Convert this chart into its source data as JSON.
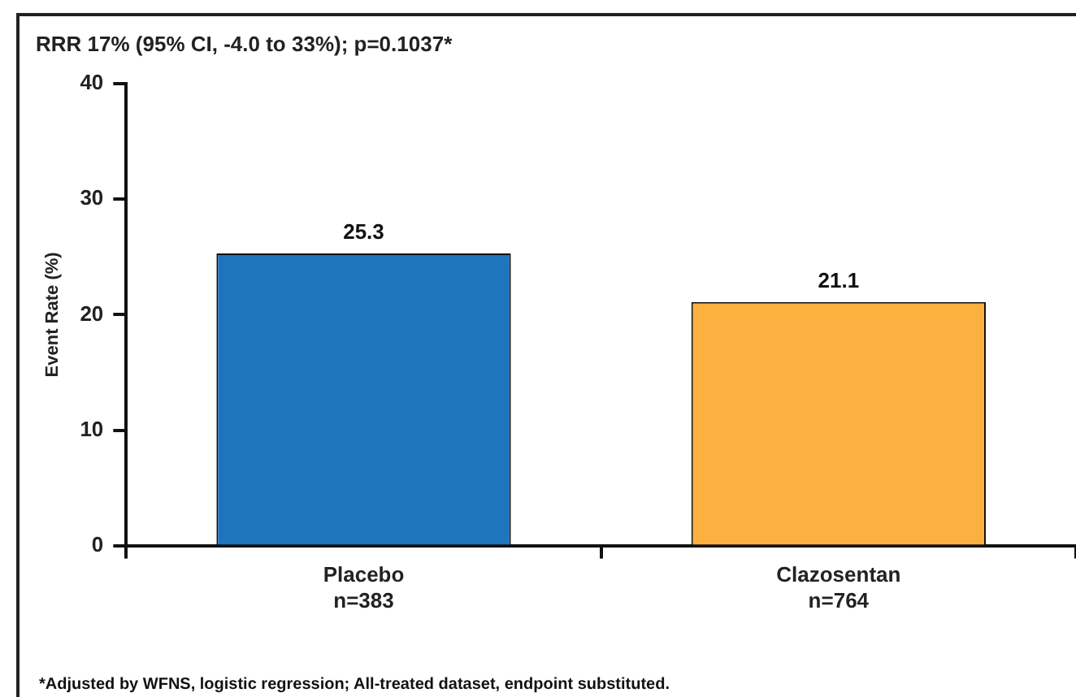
{
  "chart_data": {
    "type": "bar",
    "title": "RRR 17% (95% CI, -4.0 to 33%); p=0.1037*",
    "ylabel": "Event Rate (%)",
    "categories": [
      "Placebo\nn=383",
      "Clazosentan\nn=764"
    ],
    "values": [
      25.3,
      21.1
    ],
    "colors": [
      "#1f74bd",
      "#fbb040"
    ],
    "ylim": [
      0,
      40
    ],
    "yticks": [
      0,
      10,
      20,
      30,
      40
    ],
    "grid": false,
    "data_labels": true,
    "annotations": [
      "*Adjusted by WFNS, logistic regression; All-treated dataset, endpoint substituted."
    ]
  }
}
